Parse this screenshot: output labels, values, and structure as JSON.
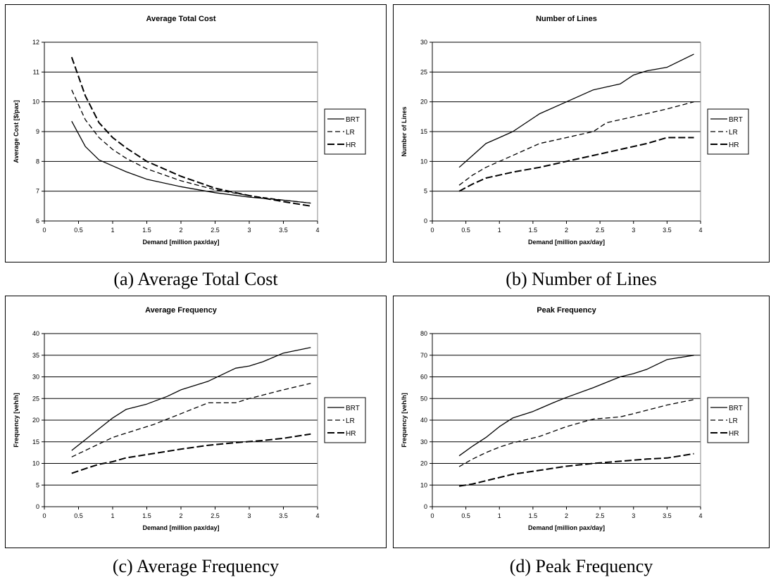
{
  "chart_data": [
    {
      "type": "line",
      "title": "Average Total Cost",
      "xlabel": "Demand [million pax/day]",
      "ylabel": "Average Cost [$/pax]",
      "caption": "(a) Average Total Cost",
      "xlim": [
        0,
        4
      ],
      "ylim": [
        6,
        12
      ],
      "xticks": [
        "0",
        "0.5",
        "1",
        "1.5",
        "2",
        "2.5",
        "3",
        "3.5",
        "4"
      ],
      "yticks": [
        "6",
        "7",
        "8",
        "9",
        "10",
        "11",
        "12"
      ],
      "grid": "horizontal",
      "legend_position": "right",
      "series": [
        {
          "name": "BRT",
          "dash": "solid",
          "x": [
            0.4,
            0.6,
            0.8,
            1.0,
            1.2,
            1.5,
            2.0,
            2.5,
            3.0,
            3.5,
            3.9
          ],
          "y": [
            9.35,
            8.5,
            8.05,
            7.85,
            7.65,
            7.4,
            7.15,
            6.95,
            6.8,
            6.7,
            6.6
          ]
        },
        {
          "name": "LR",
          "dash": "dashed",
          "x": [
            0.4,
            0.6,
            0.8,
            1.0,
            1.2,
            1.5,
            2.0,
            2.5,
            3.0,
            3.5,
            3.9
          ],
          "y": [
            10.4,
            9.4,
            8.8,
            8.4,
            8.1,
            7.75,
            7.35,
            7.05,
            6.85,
            6.7,
            6.6
          ]
        },
        {
          "name": "HR",
          "dash": "longdash",
          "x": [
            0.4,
            0.6,
            0.8,
            1.0,
            1.2,
            1.5,
            2.0,
            2.5,
            3.0,
            3.5,
            3.9
          ],
          "y": [
            11.5,
            10.2,
            9.3,
            8.8,
            8.45,
            8.0,
            7.5,
            7.1,
            6.85,
            6.65,
            6.5
          ]
        }
      ]
    },
    {
      "type": "line",
      "title": "Number of Lines",
      "xlabel": "Demand [million pax/day]",
      "ylabel": "Number of Lines",
      "caption": "(b) Number of Lines",
      "xlim": [
        0,
        4
      ],
      "ylim": [
        0,
        30
      ],
      "xticks": [
        "0",
        "0.5",
        "1",
        "1.5",
        "2",
        "2.5",
        "3",
        "3.5",
        "4"
      ],
      "yticks": [
        "0",
        "5",
        "10",
        "15",
        "20",
        "25",
        "30"
      ],
      "grid": "horizontal",
      "legend_position": "right",
      "series": [
        {
          "name": "BRT",
          "dash": "solid",
          "x": [
            0.4,
            0.6,
            0.8,
            1.0,
            1.2,
            1.6,
            2.0,
            2.4,
            2.8,
            3.0,
            3.2,
            3.5,
            3.9
          ],
          "y": [
            9,
            11,
            13,
            14,
            15,
            18,
            20,
            22,
            23,
            24.5,
            25.2,
            25.8,
            28
          ]
        },
        {
          "name": "LR",
          "dash": "dashed",
          "x": [
            0.4,
            0.6,
            0.8,
            1.0,
            1.2,
            1.6,
            2.0,
            2.4,
            2.6,
            3.0,
            3.5,
            3.9
          ],
          "y": [
            6,
            7.7,
            9,
            10,
            11,
            13,
            14,
            15,
            16.5,
            17.5,
            18.8,
            20
          ]
        },
        {
          "name": "HR",
          "dash": "longdash",
          "x": [
            0.4,
            0.6,
            0.8,
            1.0,
            1.2,
            1.6,
            2.0,
            2.4,
            2.8,
            3.2,
            3.5,
            3.9
          ],
          "y": [
            5,
            6.2,
            7.2,
            7.7,
            8.2,
            9,
            10,
            11,
            12,
            13,
            14,
            14
          ]
        }
      ]
    },
    {
      "type": "line",
      "title": "Average Frequency",
      "xlabel": "Demand [million pax/day]",
      "ylabel": "Frequency [veh/h]",
      "caption": "(c) Average Frequency",
      "xlim": [
        0,
        4
      ],
      "ylim": [
        0,
        40
      ],
      "xticks": [
        "0",
        "0.5",
        "1",
        "1.5",
        "2",
        "2.5",
        "3",
        "3.5",
        "4"
      ],
      "yticks": [
        "0",
        "5",
        "10",
        "15",
        "20",
        "25",
        "30",
        "35",
        "40"
      ],
      "grid": "horizontal",
      "legend_position": "right",
      "series": [
        {
          "name": "BRT",
          "dash": "solid",
          "x": [
            0.4,
            0.6,
            0.8,
            1.0,
            1.2,
            1.5,
            1.8,
            2.0,
            2.4,
            2.8,
            3.0,
            3.2,
            3.5,
            3.9
          ],
          "y": [
            13,
            15.5,
            18,
            20.5,
            22.5,
            23.7,
            25.5,
            27,
            29,
            32,
            32.5,
            33.5,
            35.5,
            36.8
          ]
        },
        {
          "name": "LR",
          "dash": "dashed",
          "x": [
            0.4,
            0.6,
            0.8,
            1.0,
            1.2,
            1.6,
            2.0,
            2.4,
            2.8,
            3.0,
            3.5,
            3.9
          ],
          "y": [
            11.5,
            13,
            14.5,
            16,
            17,
            19,
            21.5,
            24,
            24,
            25,
            27,
            28.5
          ]
        },
        {
          "name": "HR",
          "dash": "longdash",
          "x": [
            0.4,
            0.6,
            0.8,
            1.0,
            1.2,
            1.6,
            2.0,
            2.4,
            2.8,
            3.2,
            3.5,
            3.9
          ],
          "y": [
            7.7,
            8.8,
            9.8,
            10.4,
            11.3,
            12.3,
            13.3,
            14.2,
            14.8,
            15.3,
            15.8,
            16.8
          ]
        }
      ]
    },
    {
      "type": "line",
      "title": "Peak Frequency",
      "xlabel": "Demand [million pax/day]",
      "ylabel": "Frequency [veh/h]",
      "caption": "(d) Peak Frequency",
      "xlim": [
        0,
        4
      ],
      "ylim": [
        0,
        80
      ],
      "xticks": [
        "0",
        "0.5",
        "1",
        "1.5",
        "2",
        "2.5",
        "3",
        "3.5",
        "4"
      ],
      "yticks": [
        "0",
        "10",
        "20",
        "30",
        "40",
        "50",
        "60",
        "70",
        "80"
      ],
      "grid": "horizontal",
      "legend_position": "right",
      "series": [
        {
          "name": "BRT",
          "dash": "solid",
          "x": [
            0.4,
            0.6,
            0.8,
            1.0,
            1.2,
            1.5,
            1.8,
            2.0,
            2.4,
            2.8,
            3.0,
            3.2,
            3.5,
            3.9
          ],
          "y": [
            23.5,
            28,
            32,
            37,
            41,
            44,
            48,
            50.5,
            55,
            60,
            61.5,
            63.5,
            68,
            70
          ]
        },
        {
          "name": "LR",
          "dash": "dashed",
          "x": [
            0.4,
            0.6,
            0.8,
            1.0,
            1.2,
            1.6,
            2.0,
            2.4,
            2.8,
            3.0,
            3.5,
            3.9
          ],
          "y": [
            18.5,
            22,
            25,
            27.5,
            29.5,
            32.5,
            37,
            40.5,
            41.5,
            43,
            47,
            49.5
          ]
        },
        {
          "name": "HR",
          "dash": "longdash",
          "x": [
            0.4,
            0.6,
            0.8,
            1.0,
            1.2,
            1.6,
            2.0,
            2.4,
            2.8,
            3.2,
            3.5,
            3.9
          ],
          "y": [
            9.5,
            10.5,
            12,
            13.5,
            15,
            16.8,
            18.7,
            20,
            21,
            22,
            22.5,
            24.5
          ]
        }
      ]
    }
  ]
}
